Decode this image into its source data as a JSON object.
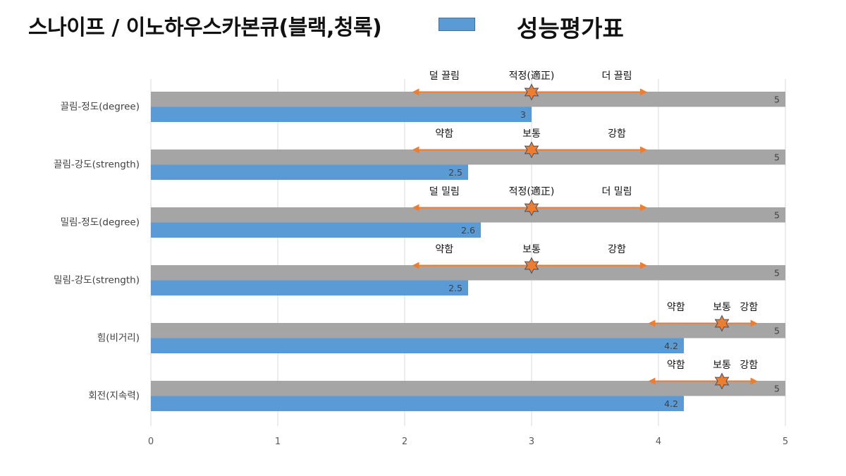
{
  "title": "스나이프 / 이노하우스카본큐(블랙,청록)",
  "legend": {
    "label": "성능평가표",
    "color": "#5b9bd5"
  },
  "chart_data": {
    "type": "bar",
    "orientation": "horizontal",
    "categories": [
      "끌림-정도(degree)",
      "끌림-강도(strength)",
      "밀림-정도(degree)",
      "밀림-강도(strength)",
      "힘(비거리)",
      "회전(지속력)"
    ],
    "series": [
      {
        "values": [
          5,
          5,
          5,
          5,
          5,
          5
        ],
        "color": "#a5a5a5"
      },
      {
        "name": "성능평가표",
        "values": [
          3,
          2.5,
          2.6,
          2.5,
          4.2,
          4.2
        ],
        "color": "#5b9bd5"
      }
    ],
    "xlim": [
      0,
      5
    ],
    "xticks": [
      0,
      1,
      2,
      3,
      4,
      5
    ],
    "grid": true,
    "legend_position": "top",
    "annotations": [
      {
        "left": "덜 끌림",
        "center": "적정(適正)",
        "right": "더 끌림",
        "marker": 3,
        "range": [
          2.07,
          3.9
        ]
      },
      {
        "left": "약함",
        "center": "보통",
        "right": "강함",
        "marker": 3,
        "range": [
          2.07,
          3.9
        ]
      },
      {
        "left": "덜 밀림",
        "center": "적정(適正)",
        "right": "더 밀림",
        "marker": 3,
        "range": [
          2.07,
          3.9
        ]
      },
      {
        "left": "약함",
        "center": "보통",
        "right": "강함",
        "marker": 3,
        "range": [
          2.07,
          3.9
        ]
      },
      {
        "left": "약함",
        "center": "보통",
        "right": "강함",
        "marker": 4.5,
        "range": [
          3.93,
          4.77
        ]
      },
      {
        "left": "약함",
        "center": "보통",
        "right": "강함",
        "marker": 4.5,
        "range": [
          3.93,
          4.77
        ]
      }
    ],
    "arrow_color": "#ed7d31",
    "marker_color": "#ed7d31"
  }
}
